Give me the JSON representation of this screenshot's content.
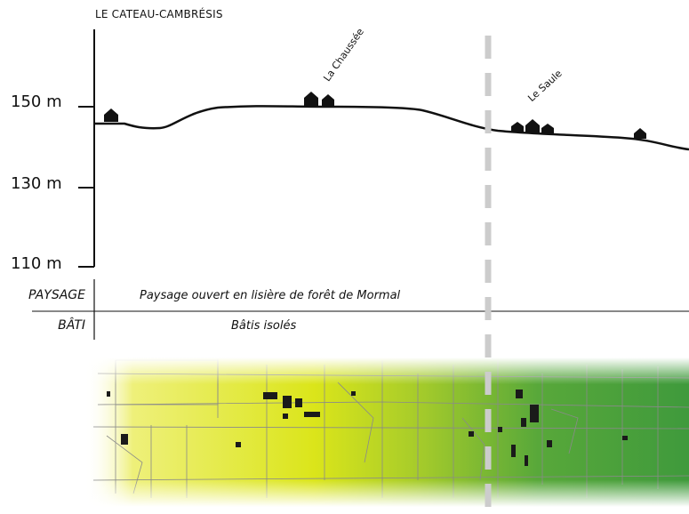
{
  "profile": {
    "start_label": "LE CATEAU-CAMBRÉSIS",
    "altitude_ticks": [
      "150 m",
      "130 m",
      "110 m"
    ],
    "places": [
      {
        "name": "La Chaussée"
      },
      {
        "name": "Le Saule"
      }
    ]
  },
  "table": {
    "rows": [
      {
        "label": "PAYSAGE",
        "value": "Paysage ouvert en lisière de forêt de Mormal"
      },
      {
        "label": "BÂTI",
        "value": "Bâtis isolés"
      }
    ]
  },
  "colors": {
    "profile_line": "#111111",
    "separator": "#cccccc",
    "map_yellow": "#e6e81a",
    "map_green": "#3f9a3c",
    "map_parcel_lines": "#8a8a8a"
  }
}
